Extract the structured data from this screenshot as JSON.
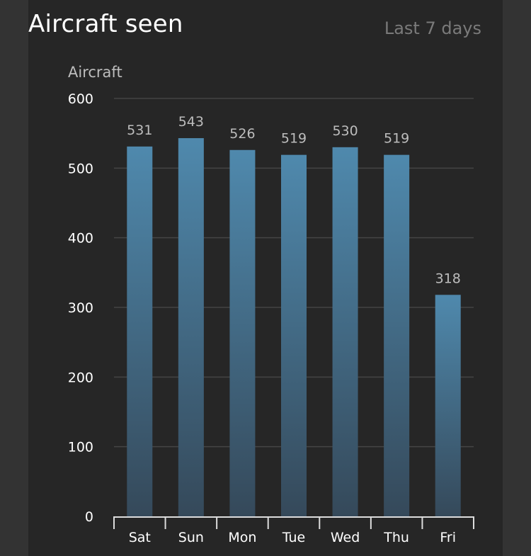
{
  "header": {
    "title": "Aircraft seen",
    "range": "Last 7 days"
  },
  "colors": {
    "bar_top": "#4f89ad",
    "bar_bottom": "#35495a",
    "grid": "#444444",
    "axis": "#dddddd",
    "tick_text": "#ffffff",
    "label_text": "#bdbdbd"
  },
  "chart_data": {
    "type": "bar",
    "categories": [
      "Sat",
      "Sun",
      "Mon",
      "Tue",
      "Wed",
      "Thu",
      "Fri"
    ],
    "values": [
      531,
      543,
      526,
      519,
      530,
      519,
      318
    ],
    "ylabel": "Aircraft",
    "ylim": [
      0,
      600
    ],
    "yticks": [
      0,
      100,
      200,
      300,
      400,
      500,
      600
    ],
    "grid": true,
    "data_labels": true
  }
}
